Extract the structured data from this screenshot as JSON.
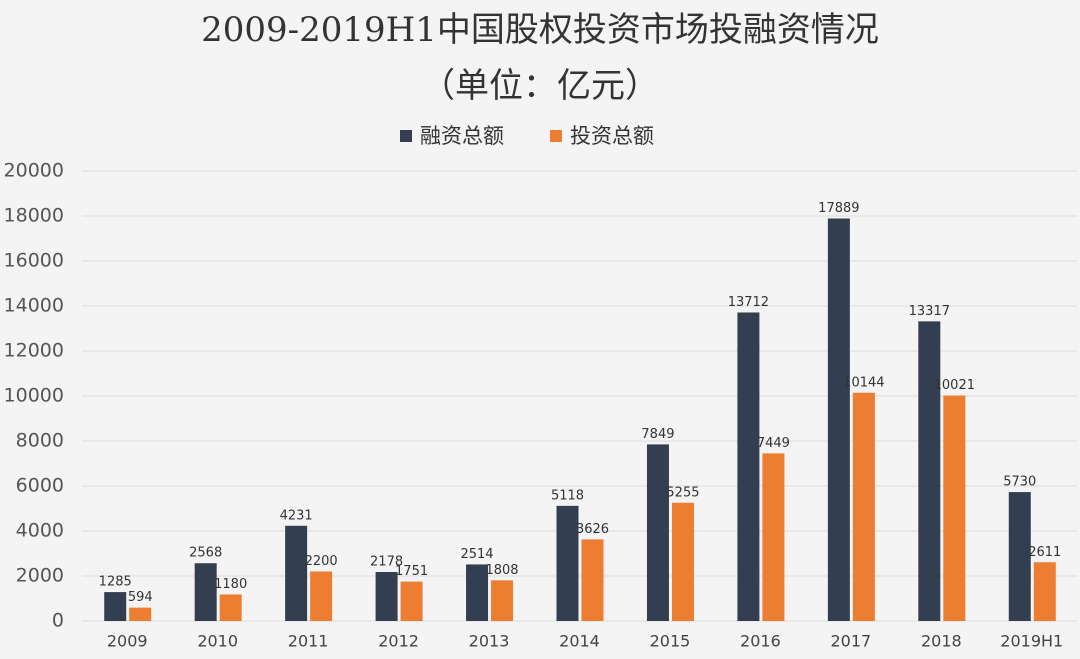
{
  "chart_data": {
    "type": "bar",
    "title": "2009-2019H1中国股权投资市场投融资情况",
    "subtitle": "（单位：亿元）",
    "categories": [
      "2009",
      "2010",
      "2011",
      "2012",
      "2013",
      "2014",
      "2015",
      "2016",
      "2017",
      "2018",
      "2019H1"
    ],
    "series": [
      {
        "name": "融资总额",
        "color": "#333f50",
        "values": [
          1285,
          2568,
          4231,
          2178,
          2514,
          5118,
          7849,
          13712,
          17889,
          13317,
          5730
        ]
      },
      {
        "name": "投资总额",
        "color": "#ed7d31",
        "values": [
          594,
          1180,
          2200,
          1751,
          1808,
          3626,
          5255,
          7449,
          10144,
          10021,
          2611
        ]
      }
    ],
    "ylim": [
      0,
      20000
    ],
    "yticks": [
      0,
      2000,
      4000,
      6000,
      8000,
      10000,
      12000,
      14000,
      16000,
      18000,
      20000
    ],
    "grid": true,
    "legend": "top"
  }
}
